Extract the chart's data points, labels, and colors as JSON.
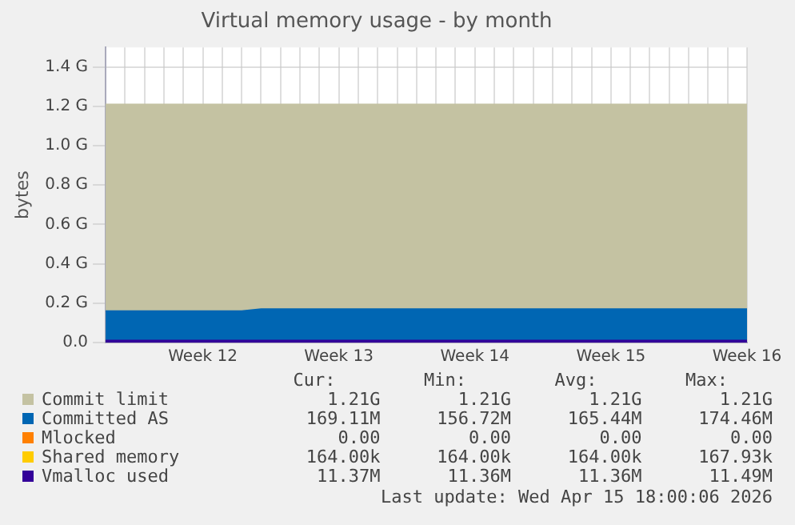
{
  "chart_data": {
    "type": "area",
    "title": "Virtual memory usage - by month",
    "ylabel": "bytes",
    "categories": [
      null,
      null,
      null,
      null,
      null,
      "Week 12",
      null,
      null,
      null,
      null,
      null,
      null,
      "Week 13",
      null,
      null,
      null,
      null,
      null,
      null,
      "Week 14",
      null,
      null,
      null,
      null,
      null,
      null,
      "Week 15",
      null,
      null,
      null,
      null,
      null,
      null,
      "Week 16"
    ],
    "ylim": [
      0,
      1.5
    ],
    "yticks": [
      {
        "value": 0,
        "label": "0.0"
      },
      {
        "value": 0.2,
        "label": "0.2 G"
      },
      {
        "value": 0.4,
        "label": "0.4 G"
      },
      {
        "value": 0.6,
        "label": "0.6 G"
      },
      {
        "value": 0.8,
        "label": "0.8 G"
      },
      {
        "value": 1.0,
        "label": "1.0 G"
      },
      {
        "value": 1.2,
        "label": "1.2 G"
      },
      {
        "value": 1.4,
        "label": "1.4 G"
      }
    ],
    "grid": true,
    "legend": "bottom",
    "series": [
      {
        "name": "Commit limit",
        "color": "#c4c2a2",
        "values": [
          1.21,
          1.21,
          1.21,
          1.21,
          1.21,
          1.21,
          1.21,
          1.21,
          1.21,
          1.21,
          1.21,
          1.21,
          1.21,
          1.21,
          1.21,
          1.21,
          1.21,
          1.21,
          1.21,
          1.21,
          1.21,
          1.21,
          1.21,
          1.21,
          1.21,
          1.21,
          1.21,
          1.21,
          1.21,
          1.21,
          1.21,
          1.21,
          1.21,
          1.21
        ]
      },
      {
        "name": "Committed AS",
        "color": "#0066b3",
        "values": [
          0.16,
          0.16,
          0.16,
          0.16,
          0.16,
          0.16,
          0.16,
          0.16,
          0.17,
          0.17,
          0.17,
          0.17,
          0.17,
          0.17,
          0.17,
          0.17,
          0.17,
          0.17,
          0.17,
          0.17,
          0.17,
          0.17,
          0.17,
          0.17,
          0.17,
          0.17,
          0.17,
          0.17,
          0.17,
          0.17,
          0.17,
          0.17,
          0.17,
          0.17
        ]
      },
      {
        "name": "Mlocked",
        "color": "#ff8000",
        "values": [
          null,
          null,
          null,
          null,
          null,
          null,
          null,
          null,
          null,
          null,
          null,
          null,
          null,
          null,
          null,
          null,
          null,
          null,
          null,
          null,
          null,
          null,
          null,
          null,
          null,
          null,
          null,
          null,
          null,
          null,
          null,
          null,
          null,
          null
        ]
      },
      {
        "name": "Shared memory",
        "color": "#ffcc00",
        "values": [
          null,
          null,
          null,
          null,
          null,
          null,
          null,
          null,
          null,
          null,
          null,
          null,
          null,
          null,
          null,
          null,
          null,
          null,
          null,
          null,
          null,
          null,
          null,
          null,
          null,
          null,
          null,
          null,
          null,
          null,
          null,
          null,
          null,
          null
        ]
      },
      {
        "name": "Vmalloc used",
        "color": "#330099",
        "values": [
          0.01,
          0.01,
          0.01,
          0.01,
          0.01,
          0.01,
          0.01,
          0.01,
          0.01,
          0.01,
          0.01,
          0.01,
          0.01,
          0.01,
          0.01,
          0.01,
          0.01,
          0.01,
          0.01,
          0.01,
          0.01,
          0.01,
          0.01,
          0.01,
          0.01,
          0.01,
          0.01,
          0.01,
          0.01,
          0.01,
          0.01,
          0.01,
          0.01,
          0.01
        ]
      }
    ],
    "annotations": [
      "Cur:",
      "Min:",
      "Avg:",
      "Max:",
      "1.21G",
      "1.21G",
      "1.21G",
      "1.21G",
      "169.11M",
      "156.72M",
      "165.44M",
      "174.46M",
      "0.00",
      "0.00",
      "0.00",
      "0.00",
      "164.00k",
      "164.00k",
      "164.00k",
      "167.93k",
      "11.37M",
      "11.36M",
      "11.36M",
      "11.49M",
      "Last update: Wed Apr 15 18:00:06 2026"
    ]
  }
}
